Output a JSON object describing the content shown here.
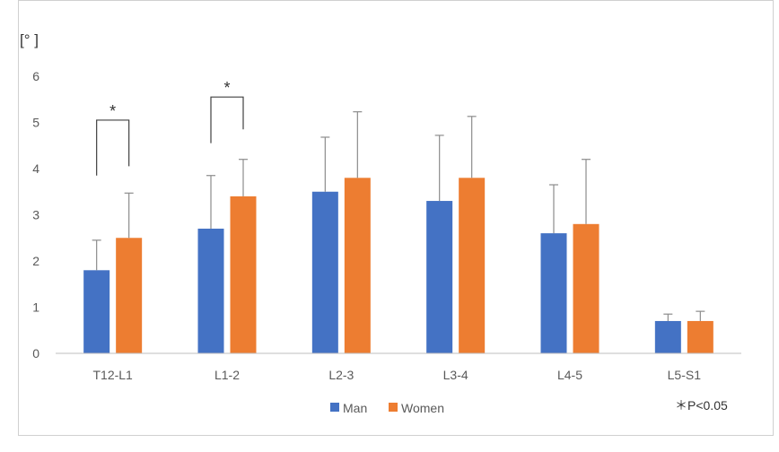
{
  "chart_data": {
    "type": "bar",
    "unit_label": "[°  ]",
    "categories": [
      "T12-L1",
      "L1-2",
      "L2-3",
      "L3-4",
      "L4-5",
      "L5-S1"
    ],
    "series": [
      {
        "name": "Man",
        "color": "#4472C4",
        "values": [
          1.8,
          2.7,
          3.5,
          3.3,
          2.6,
          0.7
        ],
        "error_upper": [
          2.45,
          3.85,
          4.68,
          4.72,
          3.65,
          0.85
        ]
      },
      {
        "name": "Women",
        "color": "#ED7D31",
        "values": [
          2.5,
          3.4,
          3.8,
          3.8,
          2.8,
          0.7
        ],
        "error_upper": [
          3.47,
          4.2,
          5.23,
          5.13,
          4.2,
          0.91
        ]
      }
    ],
    "ylim": [
      0,
      6
    ],
    "yticks": [
      0,
      1,
      2,
      3,
      4,
      5,
      6
    ],
    "grid": false,
    "legend": "bottom-center",
    "significance": [
      {
        "category_index": 0,
        "label": "*",
        "top": 5.05,
        "left_bottom": 3.85,
        "right_bottom": 4.05
      },
      {
        "category_index": 1,
        "label": "*",
        "top": 5.55,
        "left_bottom": 4.55,
        "right_bottom": 4.85
      }
    ],
    "footnote": "＊P<0.05"
  }
}
